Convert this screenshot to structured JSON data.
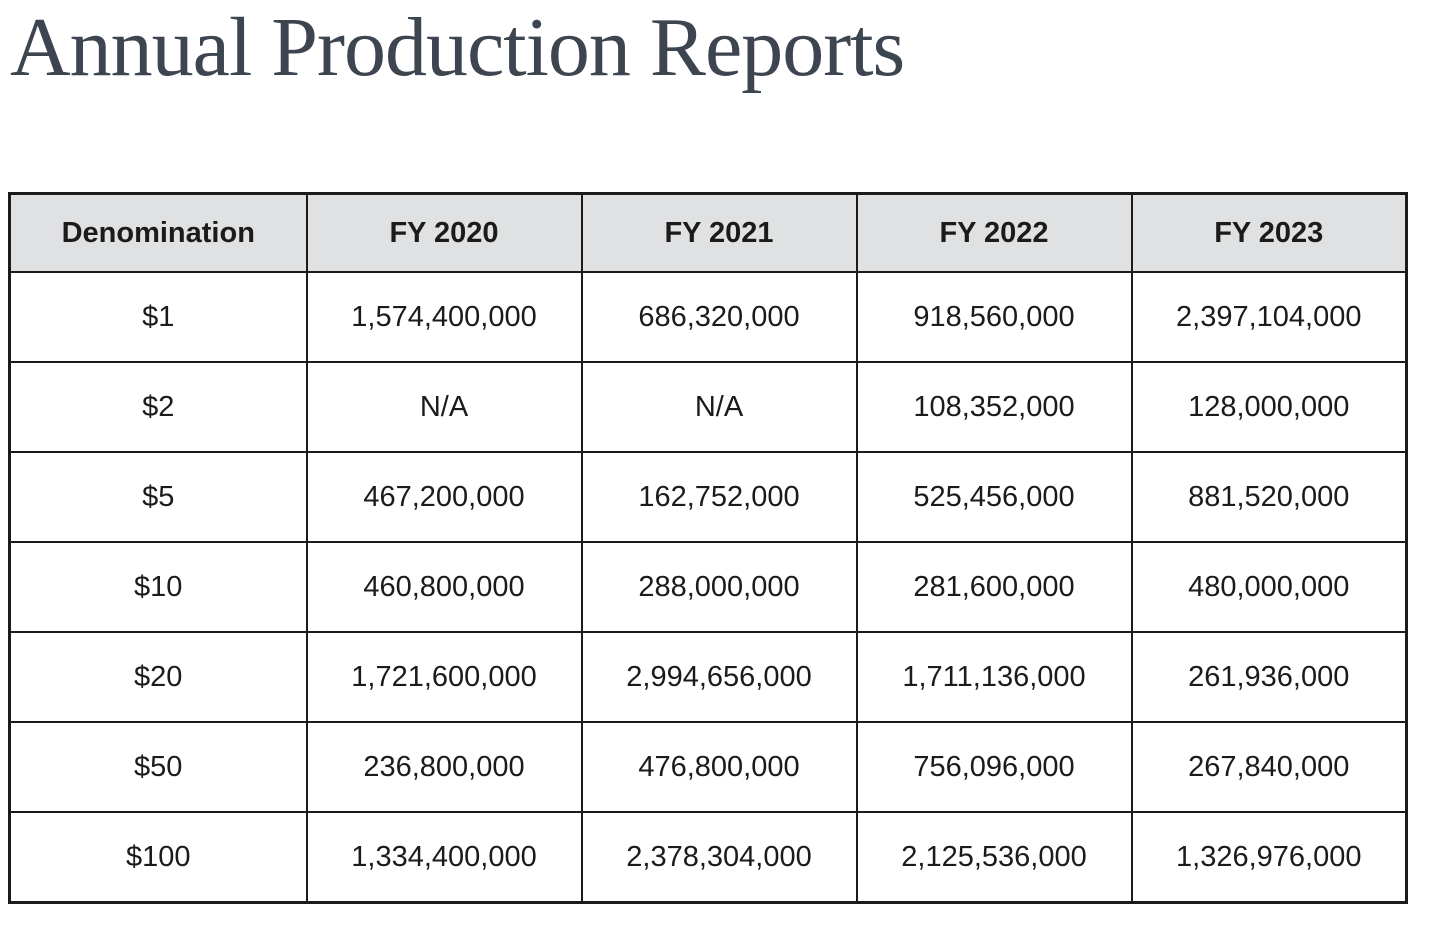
{
  "page_title": "Annual Production Reports",
  "table": {
    "columns": [
      "Denomination",
      "FY 2020",
      "FY 2021",
      "FY 2022",
      "FY 2023"
    ],
    "rows": [
      {
        "denomination": "$1",
        "values": [
          "1,574,400,000",
          "686,320,000",
          "918,560,000",
          "2,397,104,000"
        ]
      },
      {
        "denomination": "$2",
        "values": [
          "N/A",
          "N/A",
          "108,352,000",
          "128,000,000"
        ]
      },
      {
        "denomination": "$5",
        "values": [
          "467,200,000",
          "162,752,000",
          "525,456,000",
          "881,520,000"
        ]
      },
      {
        "denomination": "$10",
        "values": [
          "460,800,000",
          "288,000,000",
          "281,600,000",
          "480,000,000"
        ]
      },
      {
        "denomination": "$20",
        "values": [
          "1,721,600,000",
          "2,994,656,000",
          "1,711,136,000",
          "261,936,000"
        ]
      },
      {
        "denomination": "$50",
        "values": [
          "236,800,000",
          "476,800,000",
          "756,096,000",
          "267,840,000"
        ]
      },
      {
        "denomination": "$100",
        "values": [
          "1,334,400,000",
          "2,378,304,000",
          "2,125,536,000",
          "1,326,976,000"
        ]
      }
    ]
  },
  "colors": {
    "title": "#3d4551",
    "text": "#1b1b1b",
    "border": "#1b1b1b",
    "header_bg": "#dfe1e2",
    "background": "#ffffff"
  }
}
